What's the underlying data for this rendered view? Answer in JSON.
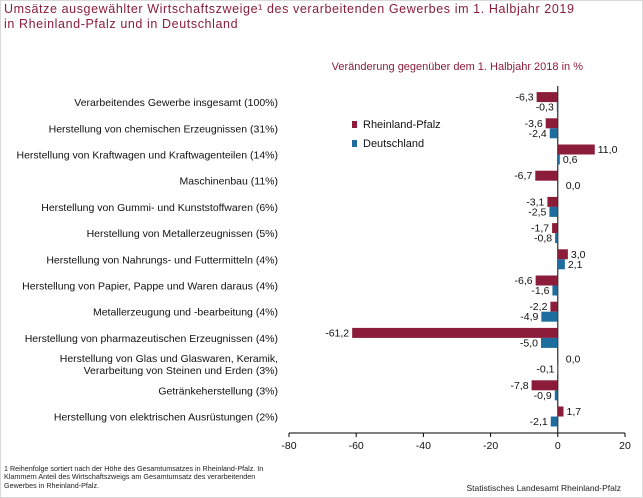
{
  "title": {
    "line1": "Umsätze ausgewählter Wirtschaftszweige¹ des verarbeitenden Gewerbes im 1. Halbjahr 2019",
    "line2": "in Rheinland-Pfalz und in Deutschland"
  },
  "footnote": "1 Reihenfolge sortiert nach der Höhe des Gesamtumsatzes in Rheinland-Pfalz. In Klammern Anteil des Wirtschaftszweigs am Gesamtumsatz des verarbeitenden Gewerbes in Rheinland-Pfalz.",
  "source": "Statistisches Landesamt Rheinland-Pfalz",
  "colors": {
    "rlp": "#8b1d3a",
    "de": "#1d6e9e",
    "axis": "#000000",
    "text": "#111111"
  },
  "chart_data": {
    "type": "bar",
    "orientation": "horizontal",
    "subtitle": "Veränderung gegenüber dem 1. Halbjahr 2018 in %",
    "categories": [
      "Verarbeitendes Gewerbe insgesamt (100%)",
      "Herstellung von chemischen Erzeugnissen (31%)",
      "Herstellung von Kraftwagen und Kraftwagenteilen (14%)",
      "Maschinenbau (11%)",
      "Herstellung von Gummi- und Kunststoffwaren (6%)",
      "Herstellung von Metallerzeugnissen (5%)",
      "Herstellung von Nahrungs- und Futtermitteln (4%)",
      "Herstellung von Papier, Pappe und Waren daraus (4%)",
      "Metallerzeugung und -bearbeitung (4%)",
      "Herstellung von pharmazeutischen Erzeugnissen (4%)",
      "Herstellung von Glas und Glaswaren, Keramik,\nVerarbeitung von Steinen und Erden (3%)",
      "Getränkeherstellung (3%)",
      "Herstellung von elektrischen Ausrüstungen (2%)"
    ],
    "series": [
      {
        "name": "Rheinland-Pfalz",
        "values": [
          -6.3,
          -3.6,
          11.0,
          -6.7,
          -3.1,
          -1.7,
          3.0,
          -6.6,
          -2.2,
          -61.2,
          0.0,
          -7.8,
          1.7
        ],
        "labels": [
          "-6,3",
          "-3,6",
          "11,0",
          "-6,7",
          "-3,1",
          "-1,7",
          "3,0",
          "-6,6",
          "-2,2",
          "-61,2",
          "0,0",
          "-7,8",
          "1,7"
        ]
      },
      {
        "name": "Deutschland",
        "values": [
          -0.3,
          -2.4,
          0.6,
          0.0,
          -2.5,
          -0.8,
          2.1,
          -1.6,
          -4.9,
          -5.0,
          -0.1,
          -0.9,
          -2.1
        ],
        "labels": [
          "-0,3",
          "-2,4",
          "0,6",
          "0,0",
          "-2,5",
          "-0,8",
          "2,1",
          "-1,6",
          "-4,9",
          "-5,0",
          "-0,1",
          "-0,9",
          "-2,1"
        ]
      }
    ],
    "xlim": [
      -80,
      20
    ],
    "xticks": [
      -80,
      -60,
      -40,
      -20,
      0,
      20
    ],
    "legend": "inside-top-center"
  }
}
